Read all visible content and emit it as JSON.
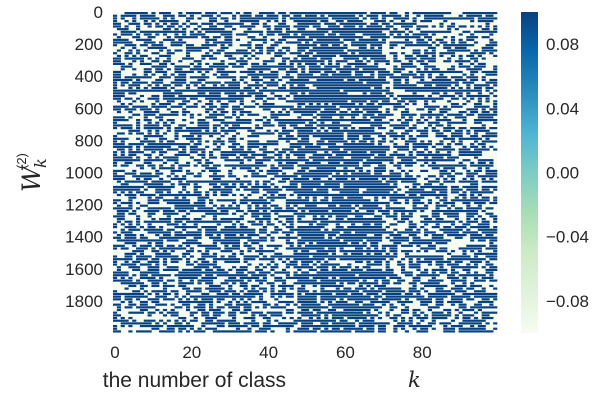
{
  "chart_data": {
    "type": "heatmap",
    "title": "",
    "xlabel": "the number of class",
    "xlabel_var": "k",
    "ylabel_main": "W",
    "ylabel_sub": "k",
    "ylabel_sup": "(2)",
    "x_range": [
      0,
      100
    ],
    "y_range": [
      0,
      2000
    ],
    "y_inverted": true,
    "x_ticks": [
      "0",
      "20",
      "40",
      "60",
      "80"
    ],
    "x_tick_values": [
      0,
      20,
      40,
      60,
      80
    ],
    "y_ticks": [
      "0",
      "200",
      "400",
      "600",
      "800",
      "1000",
      "1200",
      "1400",
      "1600",
      "1800"
    ],
    "y_tick_values": [
      0,
      200,
      400,
      600,
      800,
      1000,
      1200,
      1400,
      1600,
      1800
    ],
    "columns": 100,
    "rows": 2000,
    "colormap": "GnBu",
    "colorbar": {
      "range": [
        -0.1,
        0.1
      ],
      "ticks": [
        "0.08",
        "0.04",
        "0.00",
        "−0.04",
        "−0.08"
      ],
      "tick_values": [
        0.08,
        0.04,
        0.0,
        -0.04,
        -0.08
      ]
    },
    "value_levels": {
      "low": -0.1,
      "high": 0.1
    },
    "dense_columns_start": 48,
    "dense_columns_end": 70,
    "grid": false,
    "legend": "colorbar-right"
  },
  "colors": {
    "high": "#084081",
    "low": "#f7fcf0",
    "text": "#262626"
  }
}
